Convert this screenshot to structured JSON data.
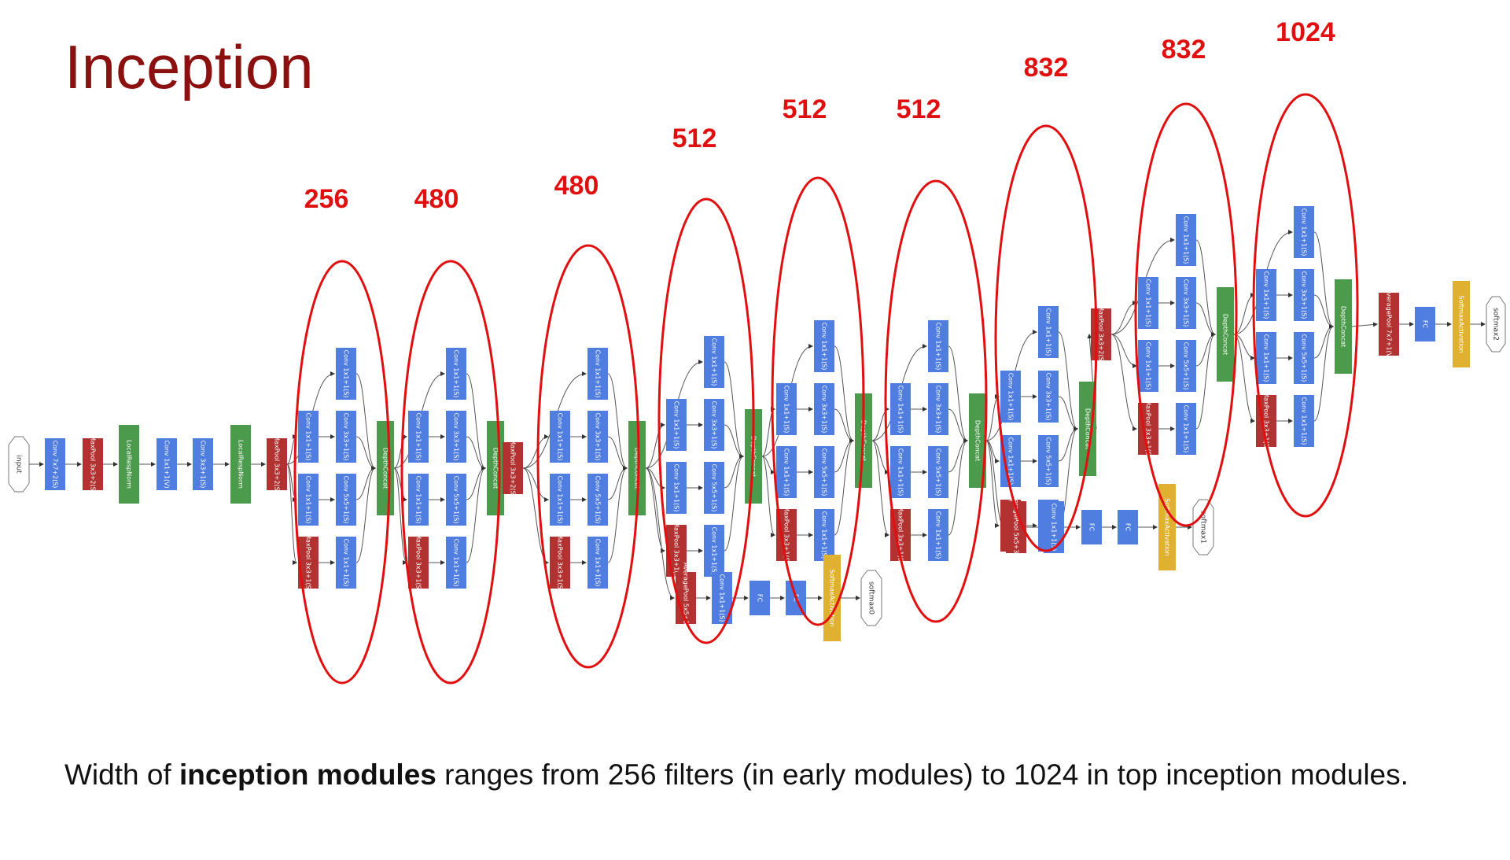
{
  "title": "Inception",
  "caption": {
    "prefix": "Width of ",
    "bold": "inception modules",
    "suffix": " ranges from 256 filters (in early modules) to 1024 in top inception modules."
  },
  "module_widths": [
    "256",
    "480",
    "480",
    "512",
    "512",
    "512",
    "832",
    "832",
    "1024"
  ],
  "colors": {
    "conv": "#4f7de0",
    "pool": "#b23232",
    "norm": "#4c9a4c",
    "concat": "#4c9a4c",
    "softmax": "#e0b030",
    "ellipse": "#e01010"
  },
  "stem_labels": {
    "input": "input",
    "conv1": "Conv 7x7+2(S)",
    "maxpool1": "MaxPool 3x3+2(S)",
    "lrn1": "LocalRespNorm",
    "conv2": "Conv 1x1+1(V)",
    "conv3": "Conv 3x3+1(S)",
    "lrn2": "LocalRespNorm",
    "maxpool2": "MaxPool 3x3+2(S)"
  },
  "module_block_labels": {
    "b1": "Conv 1x1+1(S)",
    "b2a": "Conv 1x1+1(S)",
    "b2b": "Conv 3x3+1(S)",
    "b3a": "Conv 1x1+1(S)",
    "b3b": "Conv 5x5+1(S)",
    "b4a": "MaxPool 3x3+1(S)",
    "b4b": "Conv 1x1+1(S)",
    "concat": "DepthConcat",
    "pool": "MaxPool 3x3+2(S)"
  },
  "head_labels": {
    "avgpool": "AveragePool 5x5+3(V)",
    "conv": "Conv 1x1+1(S)",
    "fc": "FC",
    "softmax": "SoftmaxActivation",
    "final_avgpool": "AveragePool 7x7+1(V)"
  },
  "outputs": [
    "softmax0",
    "softmax1",
    "softmax2"
  ]
}
